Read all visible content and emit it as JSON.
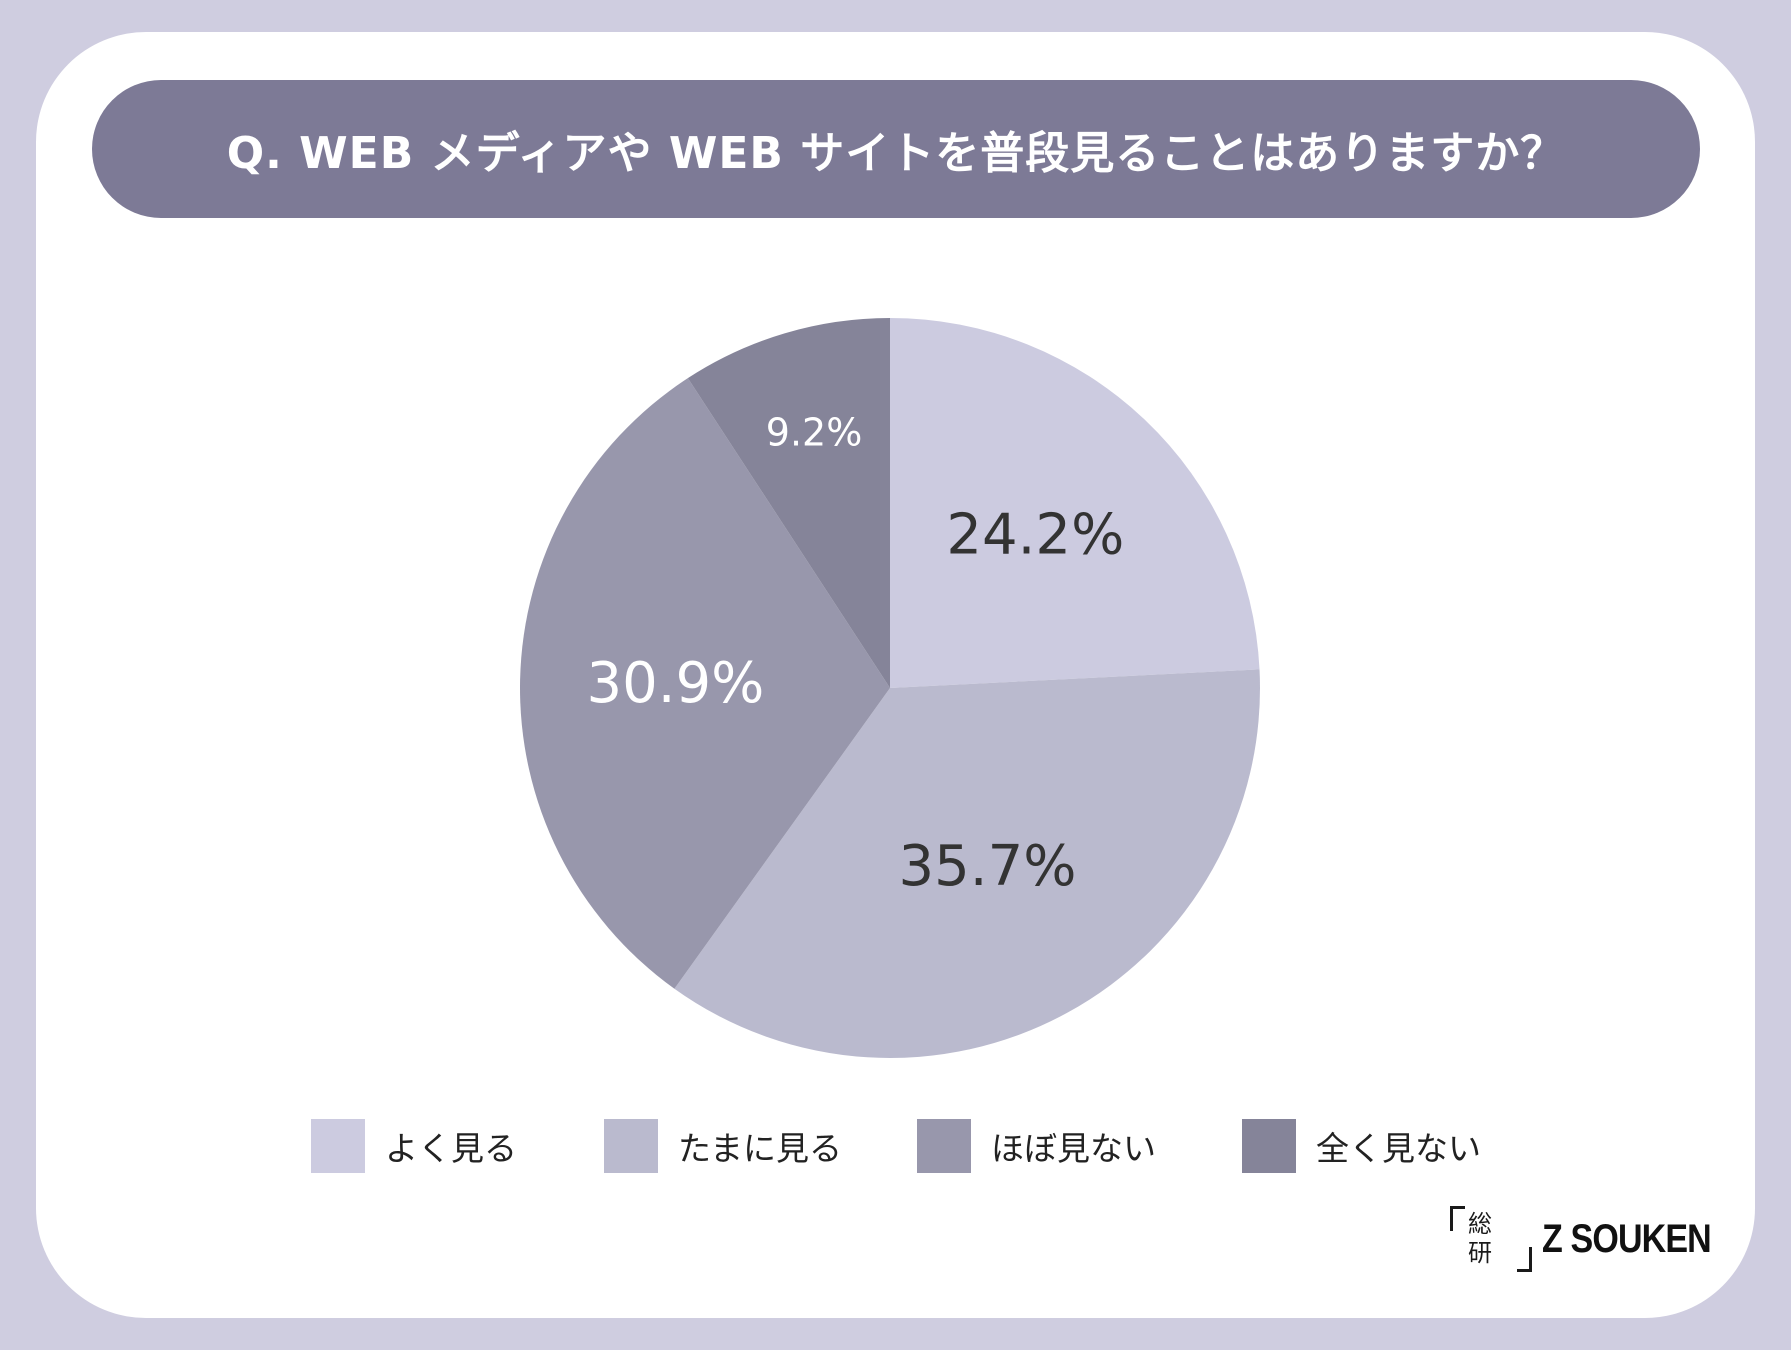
{
  "title": "Q. WEB メディアや WEB サイトを普段見ることはありますか？",
  "chart_data": {
    "type": "pie",
    "title": "Q. WEB メディアや WEB サイトを普段見ることはありますか？",
    "categories": [
      "よく見る",
      "たまに見る",
      "ほぼ見ない",
      "全く見ない"
    ],
    "values": [
      24.2,
      35.7,
      30.9,
      9.2
    ],
    "labels": [
      "24.2%",
      "35.7%",
      "30.9%",
      "9.2%"
    ],
    "colors": [
      "#cccbe0",
      "#babace",
      "#9897ac",
      "#858499"
    ],
    "label_colors": [
      "#333333",
      "#333333",
      "#ffffff",
      "#ffffff"
    ],
    "start": "12 o'clock",
    "direction": "clockwise",
    "legend_position": "bottom"
  },
  "legend": [
    {
      "label": "よく見る",
      "color": "#cccbe0"
    },
    {
      "label": "たまに見る",
      "color": "#babace"
    },
    {
      "label": "ほぼ見ない",
      "color": "#9897ac"
    },
    {
      "label": "全く見ない",
      "color": "#858499"
    }
  ],
  "logo": {
    "kanji_top": "総",
    "kanji_bottom": "研",
    "text": "Z SOUKEN"
  }
}
